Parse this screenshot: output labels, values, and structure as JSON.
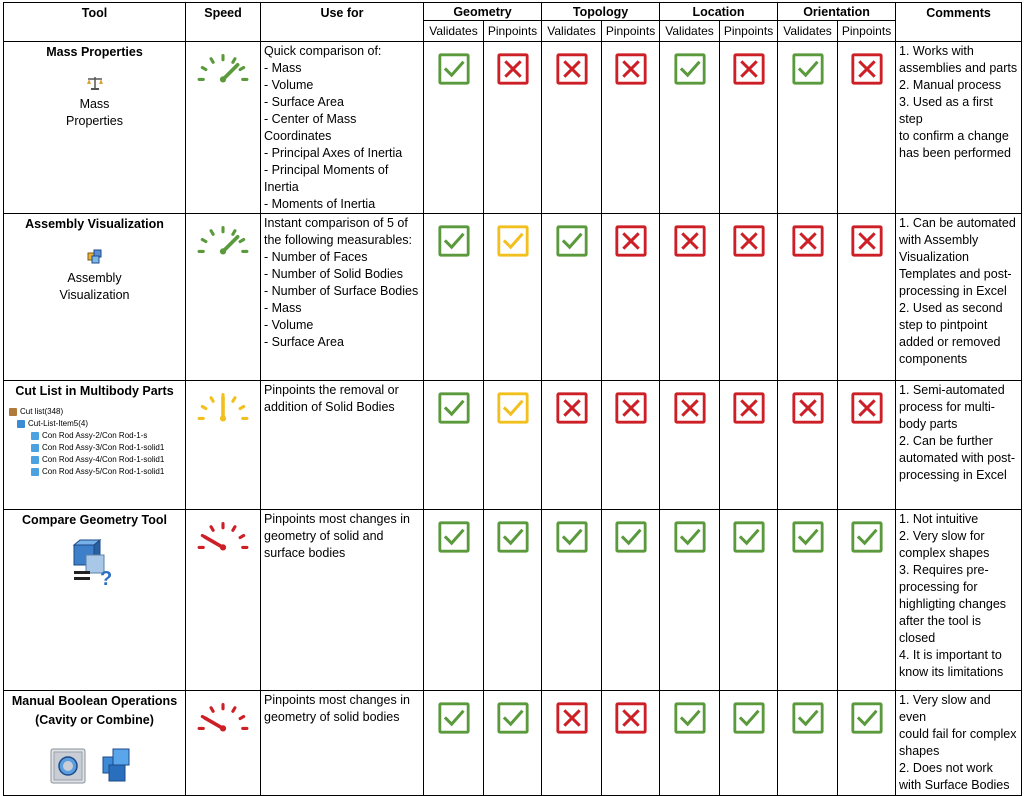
{
  "header": {
    "tool": "Tool",
    "speed": "Speed",
    "use_for": "Use for",
    "geometry": "Geometry",
    "topology": "Topology",
    "location": "Location",
    "orientation": "Orientation",
    "comments": "Comments",
    "validates": "Validates",
    "pinpoints": "Pinpoints"
  },
  "colors": {
    "pass": "#5b9a3c",
    "fail": "#cc1f26",
    "partial": "#f2c01e",
    "gauge_fast": "#5b9a3c",
    "gauge_medium": "#f2c01e",
    "gauge_slow": "#cc1f26"
  },
  "rows": [
    {
      "tool": "Mass Properties",
      "icon_label": [
        "Mass",
        "Properties"
      ],
      "icon": "scale-icon",
      "speed": "fast",
      "use_for": [
        "Quick comparison of:",
        "- Mass",
        "- Volume",
        "- Surface Area",
        "- Center of Mass Coordinates",
        "- Principal Axes of Inertia",
        "- Principal Moments of",
        "Inertia",
        "- Moments of Inertia"
      ],
      "marks": [
        "pass",
        "fail",
        "fail",
        "fail",
        "pass",
        "fail",
        "pass",
        "fail"
      ],
      "comments": [
        "1. Works with",
        "assemblies and parts",
        "2. Manual process",
        "3. Used as a first step",
        "to confirm a change",
        "has been performed"
      ]
    },
    {
      "tool": "Assembly Visualization",
      "icon_label": [
        "Assembly",
        "Visualization"
      ],
      "icon": "assembly-icon",
      "speed": "fast",
      "use_for": [
        "Instant comparison of 5 of",
        "the following measurables:",
        "- Number of Faces",
        "- Number of Solid Bodies",
        "- Number of Surface Bodies",
        "- Mass",
        "- Volume",
        "- Surface Area"
      ],
      "marks": [
        "pass",
        "partial",
        "pass",
        "fail",
        "fail",
        "fail",
        "fail",
        "fail"
      ],
      "comments": [
        "1. Can be automated",
        "with Assembly",
        "Visualization",
        "Templates and post-",
        "processing in Excel",
        "2. Used as second",
        "step to pintpoint",
        "added or removed",
        "components"
      ]
    },
    {
      "tool": "Cut List in Multibody Parts",
      "icon": "cut-list-tree-icon",
      "cut_list": [
        "Cut list(348)",
        "Cut-List-Item5(4)",
        "Con Rod Assy-2/Con Rod-1-s",
        "Con Rod Assy-3/Con Rod-1-solid1",
        "Con Rod Assy-4/Con Rod-1-solid1",
        "Con Rod Assy-5/Con Rod-1-solid1"
      ],
      "speed": "medium",
      "use_for": [
        "Pinpoints the removal or",
        "addition of Solid Bodies"
      ],
      "marks": [
        "pass",
        "partial",
        "fail",
        "fail",
        "fail",
        "fail",
        "fail",
        "fail"
      ],
      "comments": [
        "1. Semi-automated",
        "process for multi-",
        "body parts",
        "2. Can be further",
        "automated with post-",
        "processing in Excel"
      ]
    },
    {
      "tool": "Compare Geometry Tool",
      "icon": "compare-geometry-icon",
      "speed": "slow",
      "use_for": [
        "Pinpoints most changes in",
        "geometry of solid and",
        "surface bodies"
      ],
      "marks": [
        "pass",
        "pass",
        "pass",
        "pass",
        "pass",
        "pass",
        "pass",
        "pass"
      ],
      "comments": [
        "1. Not intuitive",
        "2. Very slow for",
        "complex shapes",
        "3. Requires pre-",
        "processing for",
        "highligting changes",
        "after the tool is",
        "closed",
        "4. It is important to",
        "know its limitations"
      ]
    },
    {
      "tool": "Manual Boolean Operations",
      "tool_sub": "(Cavity or Combine)",
      "icon": "boolean-icon",
      "speed": "slow",
      "use_for": [
        "Pinpoints most changes in",
        "geometry of solid bodies"
      ],
      "marks": [
        "pass",
        "pass",
        "fail",
        "fail",
        "pass",
        "pass",
        "pass",
        "pass"
      ],
      "comments": [
        "1. Very slow and even",
        "could fail for complex",
        "shapes",
        "2. Does not work",
        "with Surface Bodies"
      ]
    }
  ]
}
